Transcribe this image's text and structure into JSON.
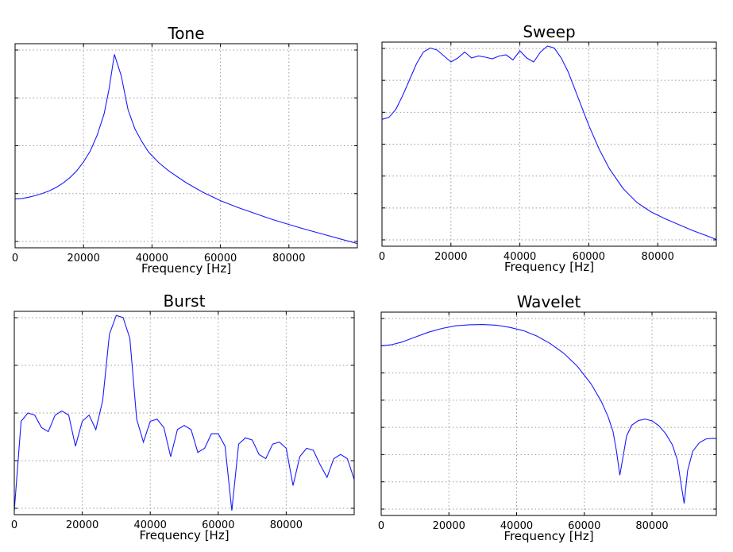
{
  "chart_data": [
    {
      "type": "line",
      "title": "Tone",
      "xlabel": "Frequency [Hz]",
      "ylabel": "",
      "xlim": [
        0,
        100000
      ],
      "xticks": [
        0,
        20000,
        40000,
        60000,
        80000
      ],
      "yticks_count": 5,
      "grid": true,
      "color": "#1a1aff",
      "series": [
        {
          "x": [
            0,
            2000,
            4000,
            6000,
            8000,
            10000,
            12000,
            14000,
            16000,
            18000,
            20000,
            22000,
            24000,
            26000,
            27500,
            29000,
            31000,
            33000,
            35000,
            37000,
            39000,
            42000,
            45000,
            50000,
            55000,
            60000,
            65000,
            70000,
            75000,
            80000,
            85000,
            90000,
            95000,
            100000
          ],
          "y": [
            0.7,
            0.71,
            0.74,
            0.78,
            0.83,
            0.89,
            0.97,
            1.07,
            1.2,
            1.36,
            1.57,
            1.83,
            2.2,
            2.7,
            3.3,
            4.1,
            3.6,
            2.8,
            2.35,
            2.05,
            1.8,
            1.55,
            1.35,
            1.08,
            0.85,
            0.66,
            0.5,
            0.36,
            0.22,
            0.1,
            -0.02,
            -0.13,
            -0.24,
            -0.35
          ]
        }
      ]
    },
    {
      "type": "line",
      "title": "Sweep",
      "xlabel": "Frequency [Hz]",
      "ylabel": "",
      "xlim": [
        0,
        97000
      ],
      "xticks": [
        0,
        20000,
        40000,
        60000,
        80000
      ],
      "yticks_count": 7,
      "grid": true,
      "color": "#1a1aff",
      "series": [
        {
          "x": [
            0,
            2000,
            4000,
            6000,
            8000,
            10000,
            12000,
            14000,
            16000,
            18000,
            20000,
            22000,
            24000,
            26000,
            28000,
            30000,
            32000,
            34000,
            36000,
            38000,
            40000,
            42000,
            44000,
            46000,
            48000,
            50000,
            52000,
            54000,
            56000,
            58000,
            60000,
            63000,
            66000,
            70000,
            74000,
            78000,
            82000,
            86000,
            90000,
            94000,
            97000
          ],
          "y": [
            4.05,
            4.1,
            4.3,
            4.65,
            5.05,
            5.45,
            5.75,
            5.85,
            5.8,
            5.65,
            5.5,
            5.6,
            5.75,
            5.6,
            5.65,
            5.62,
            5.58,
            5.65,
            5.68,
            5.55,
            5.78,
            5.6,
            5.5,
            5.75,
            5.9,
            5.85,
            5.6,
            5.25,
            4.8,
            4.35,
            3.9,
            3.3,
            2.8,
            2.3,
            1.95,
            1.72,
            1.55,
            1.4,
            1.25,
            1.12,
            1.02
          ]
        }
      ]
    },
    {
      "type": "line",
      "title": "Burst",
      "xlabel": "Frequency [Hz]",
      "ylabel": "",
      "xlim": [
        0,
        100000
      ],
      "xticks": [
        0,
        20000,
        40000,
        60000,
        80000
      ],
      "yticks_count": 5,
      "grid": true,
      "color": "#1a1aff",
      "series": [
        {
          "x": [
            0,
            2000,
            4000,
            6000,
            8000,
            10000,
            12000,
            14000,
            16000,
            18000,
            20000,
            22000,
            24000,
            26000,
            28000,
            30000,
            32000,
            34000,
            36000,
            38000,
            40000,
            42000,
            44000,
            46000,
            48000,
            50000,
            52000,
            54000,
            56000,
            58000,
            60000,
            62000,
            64000,
            66000,
            68000,
            70000,
            72000,
            74000,
            76000,
            78000,
            80000,
            82000,
            84000,
            86000,
            88000,
            90000,
            92000,
            94000,
            96000,
            98000,
            100000
          ],
          "y": [
            0.05,
            2.2,
            2.4,
            2.35,
            2.05,
            1.95,
            2.35,
            2.45,
            2.35,
            1.6,
            2.2,
            2.35,
            2.0,
            2.7,
            4.3,
            4.75,
            4.7,
            4.2,
            2.25,
            1.7,
            2.2,
            2.25,
            2.05,
            1.35,
            2.0,
            2.1,
            2.0,
            1.45,
            1.55,
            1.9,
            1.9,
            1.6,
            0.05,
            1.65,
            1.8,
            1.75,
            1.4,
            1.3,
            1.65,
            1.7,
            1.55,
            0.65,
            1.35,
            1.55,
            1.5,
            1.15,
            0.85,
            1.3,
            1.4,
            1.3,
            0.8
          ]
        }
      ]
    },
    {
      "type": "line",
      "title": "Wavelet",
      "xlabel": "Frequency [Hz]",
      "ylabel": "",
      "xlim": [
        0,
        99000
      ],
      "xticks": [
        0,
        20000,
        40000,
        60000,
        80000
      ],
      "yticks_count": 8,
      "grid": true,
      "color": "#1a1aff",
      "series": [
        {
          "x": [
            0,
            3000,
            6000,
            10000,
            14000,
            18000,
            22000,
            26000,
            30000,
            34000,
            38000,
            42000,
            46000,
            50000,
            54000,
            58000,
            62000,
            65000,
            67000,
            68500,
            69500,
            70500,
            71500,
            72500,
            74000,
            76000,
            78000,
            80000,
            82000,
            84000,
            86000,
            87500,
            88500,
            89500,
            90500,
            92000,
            94000,
            96000,
            98000,
            99000
          ],
          "y": [
            6.65,
            6.7,
            6.82,
            7.05,
            7.28,
            7.45,
            7.57,
            7.62,
            7.63,
            7.6,
            7.5,
            7.35,
            7.1,
            6.75,
            6.3,
            5.7,
            4.9,
            4.1,
            3.4,
            2.7,
            1.8,
            0.7,
            1.6,
            2.5,
            3.0,
            3.22,
            3.28,
            3.2,
            2.98,
            2.62,
            2.1,
            1.4,
            0.4,
            -0.6,
            0.9,
            1.8,
            2.2,
            2.37,
            2.4,
            2.38
          ]
        }
      ]
    }
  ]
}
